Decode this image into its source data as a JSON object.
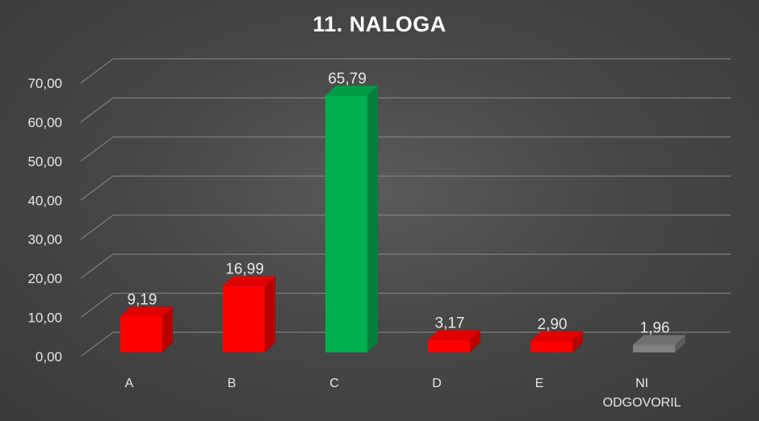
{
  "chart_data": {
    "type": "bar",
    "title": "11. NALOGA",
    "categories": [
      [
        "A"
      ],
      [
        "B"
      ],
      [
        "C"
      ],
      [
        "D"
      ],
      [
        "E"
      ],
      [
        "NI",
        "ODGOVORIL"
      ]
    ],
    "values": [
      9.19,
      16.99,
      65.79,
      3.17,
      2.9,
      1.96
    ],
    "value_labels": [
      "9,19",
      "16,99",
      "65,79",
      "3,17",
      "2,90",
      "1,96"
    ],
    "bar_colors": [
      "#ff0000",
      "#ff0000",
      "#00b050",
      "#ff0000",
      "#ff0000",
      "#808080"
    ],
    "ylim": [
      0,
      70
    ],
    "yticks": [
      0,
      10,
      20,
      30,
      40,
      50,
      60,
      70
    ],
    "ytick_labels": [
      "0,00",
      "10,00",
      "20,00",
      "30,00",
      "40,00",
      "50,00",
      "60,00",
      "70,00"
    ],
    "xlabel": "",
    "ylabel": "",
    "grid": true,
    "legend": false,
    "style": "3d-column"
  }
}
